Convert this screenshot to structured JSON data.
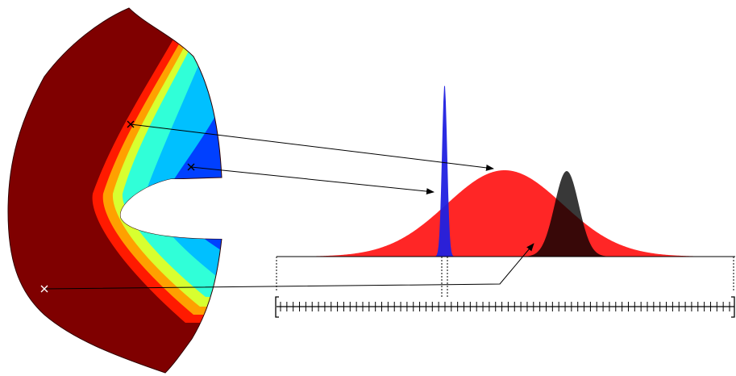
{
  "figure": {
    "colormap_field": {
      "palette_jet": [
        "#00007f",
        "#0000ff",
        "#00ffff",
        "#ffff00",
        "#ff0000",
        "#7f0000"
      ]
    },
    "sample_points": [
      {
        "id": "point-1",
        "marker": "x-marker",
        "color": "#000000"
      },
      {
        "id": "point-2",
        "marker": "x-marker",
        "color": "#000000"
      },
      {
        "id": "point-3",
        "marker": "x-marker",
        "color": "#ffffff"
      }
    ],
    "distributions": [
      {
        "id": "narrow-peak",
        "color": "#2020e0"
      },
      {
        "id": "wide-peak",
        "color": "#ff1a1a"
      },
      {
        "id": "dark-peak",
        "color": "#000000"
      }
    ],
    "axis": {
      "tick_count": 72,
      "color": "#000000"
    }
  }
}
